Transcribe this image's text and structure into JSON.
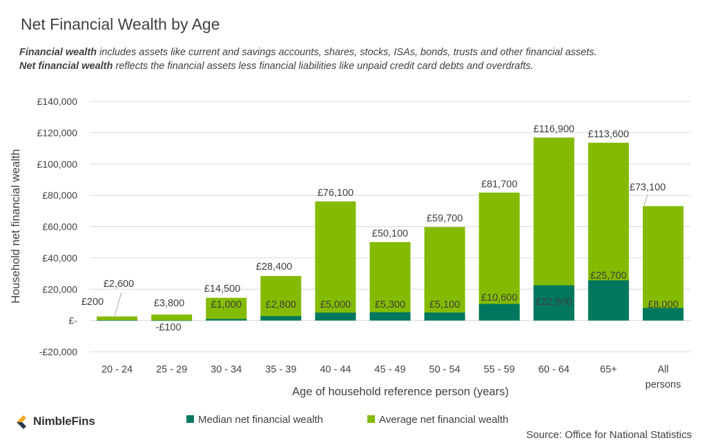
{
  "title": "Net Financial Wealth by Age",
  "subtitle": {
    "line1_bold": "Financial wealth",
    "line1_rest": " includes assets like current and savings accounts, shares, stocks, ISAs, bonds, trusts and other financial assets.",
    "line2_bold": "Net financial wealth",
    "line2_rest": " reflects the financial assets less financial liabilities like unpaid credit card debts and overdrafts."
  },
  "source": "Source: Office for National Statistics",
  "logo": {
    "text": "NimbleFins",
    "icon": "nimblefins-logo-icon"
  },
  "colors": {
    "median": "#00775F",
    "average": "#84BB00",
    "grid": "#D9D9D9",
    "text": "#404040"
  },
  "chart_data": {
    "type": "bar",
    "categories": [
      "20 - 24",
      "25 - 29",
      "30 - 34",
      "35 - 39",
      "40 - 44",
      "45 - 49",
      "50 - 54",
      "55 - 59",
      "60 - 64",
      "65+",
      "All persons"
    ],
    "series": [
      {
        "name": "Median net financial wealth",
        "values": [
          200,
          -100,
          1000,
          2800,
          5000,
          5300,
          5100,
          10600,
          22500,
          25700,
          8000
        ],
        "labels": [
          "£200",
          "-£100",
          "£1,000",
          "£2,800",
          "£5,000",
          "£5,300",
          "£5,100",
          "£10,600",
          "£22,500",
          "£25,700",
          "£8,000"
        ]
      },
      {
        "name": "Average net financial wealth",
        "values": [
          2600,
          3800,
          14500,
          28400,
          76100,
          50100,
          59700,
          81700,
          116900,
          113600,
          73100
        ],
        "labels": [
          "£2,600",
          "£3,800",
          "£14,500",
          "£28,400",
          "£76,100",
          "£50,100",
          "£59,700",
          "£81,700",
          "£116,900",
          "£113,600",
          "£73,100"
        ]
      }
    ],
    "ylim": [
      -20000,
      140000
    ],
    "yticks": [
      -20000,
      0,
      20000,
      40000,
      60000,
      80000,
      100000,
      120000,
      140000
    ],
    "ytick_labels": [
      "-£20,000",
      "£-",
      "£20,000",
      "£40,000",
      "£60,000",
      "£80,000",
      "£100,000",
      "£120,000",
      "£140,000"
    ],
    "xlabel": "Age of household reference person (years)",
    "ylabel": "Household net financial wealth",
    "grid": true,
    "legend": "bottom"
  }
}
